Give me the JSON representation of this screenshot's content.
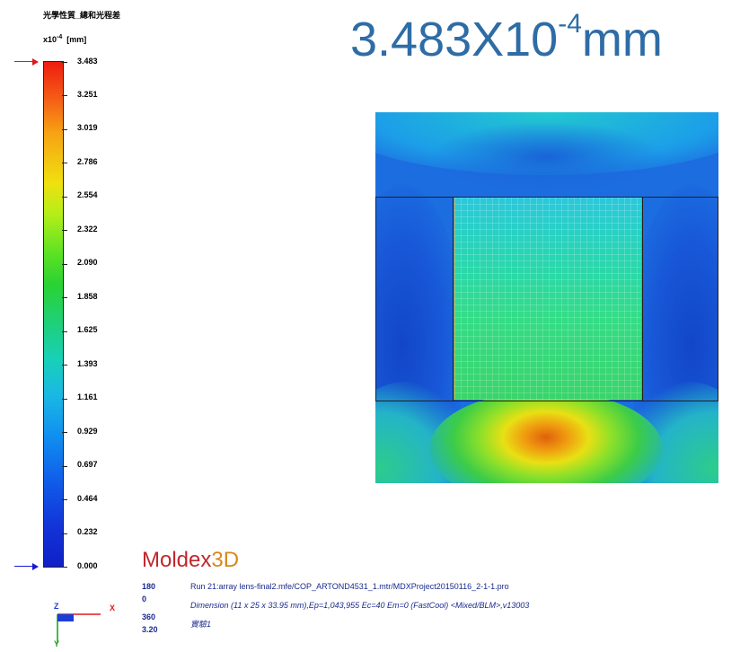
{
  "legend": {
    "title": "光學性質_總和光程差",
    "unit_prefix": "x10",
    "unit_exponent": "-4",
    "unit": "[mm]",
    "ticks": [
      "3.483",
      "3.251",
      "3.019",
      "2.786",
      "2.554",
      "2.322",
      "2.090",
      "1.858",
      "1.625",
      "1.393",
      "1.161",
      "0.929",
      "0.697",
      "0.464",
      "0.232",
      "0.000"
    ],
    "max_marker_color": "#e01818",
    "min_marker_color": "#1818d8"
  },
  "headline": {
    "base": "3.483X10",
    "exponent": "-4",
    "unit": "mm",
    "color": "#2e6ca6"
  },
  "logo": {
    "text": "Moldex",
    "suffix": "3D"
  },
  "info": {
    "values": [
      "180",
      "0",
      "360",
      "3.20"
    ],
    "run": "Run 21:array lens-final2.mfe/COP_ARTOND4531_1.mtr/MDXProject20150116_2-1-1.pro",
    "dimension": "Dimension (11 x 25 x 33.95 mm),Ep=1,043,955 Ec=40 Em=0 (FastCool) <Mixed/BLM>,v13003",
    "status": "實驗1"
  },
  "axes": {
    "x_label": "X",
    "y_label": "Y",
    "z_label": "Z"
  }
}
